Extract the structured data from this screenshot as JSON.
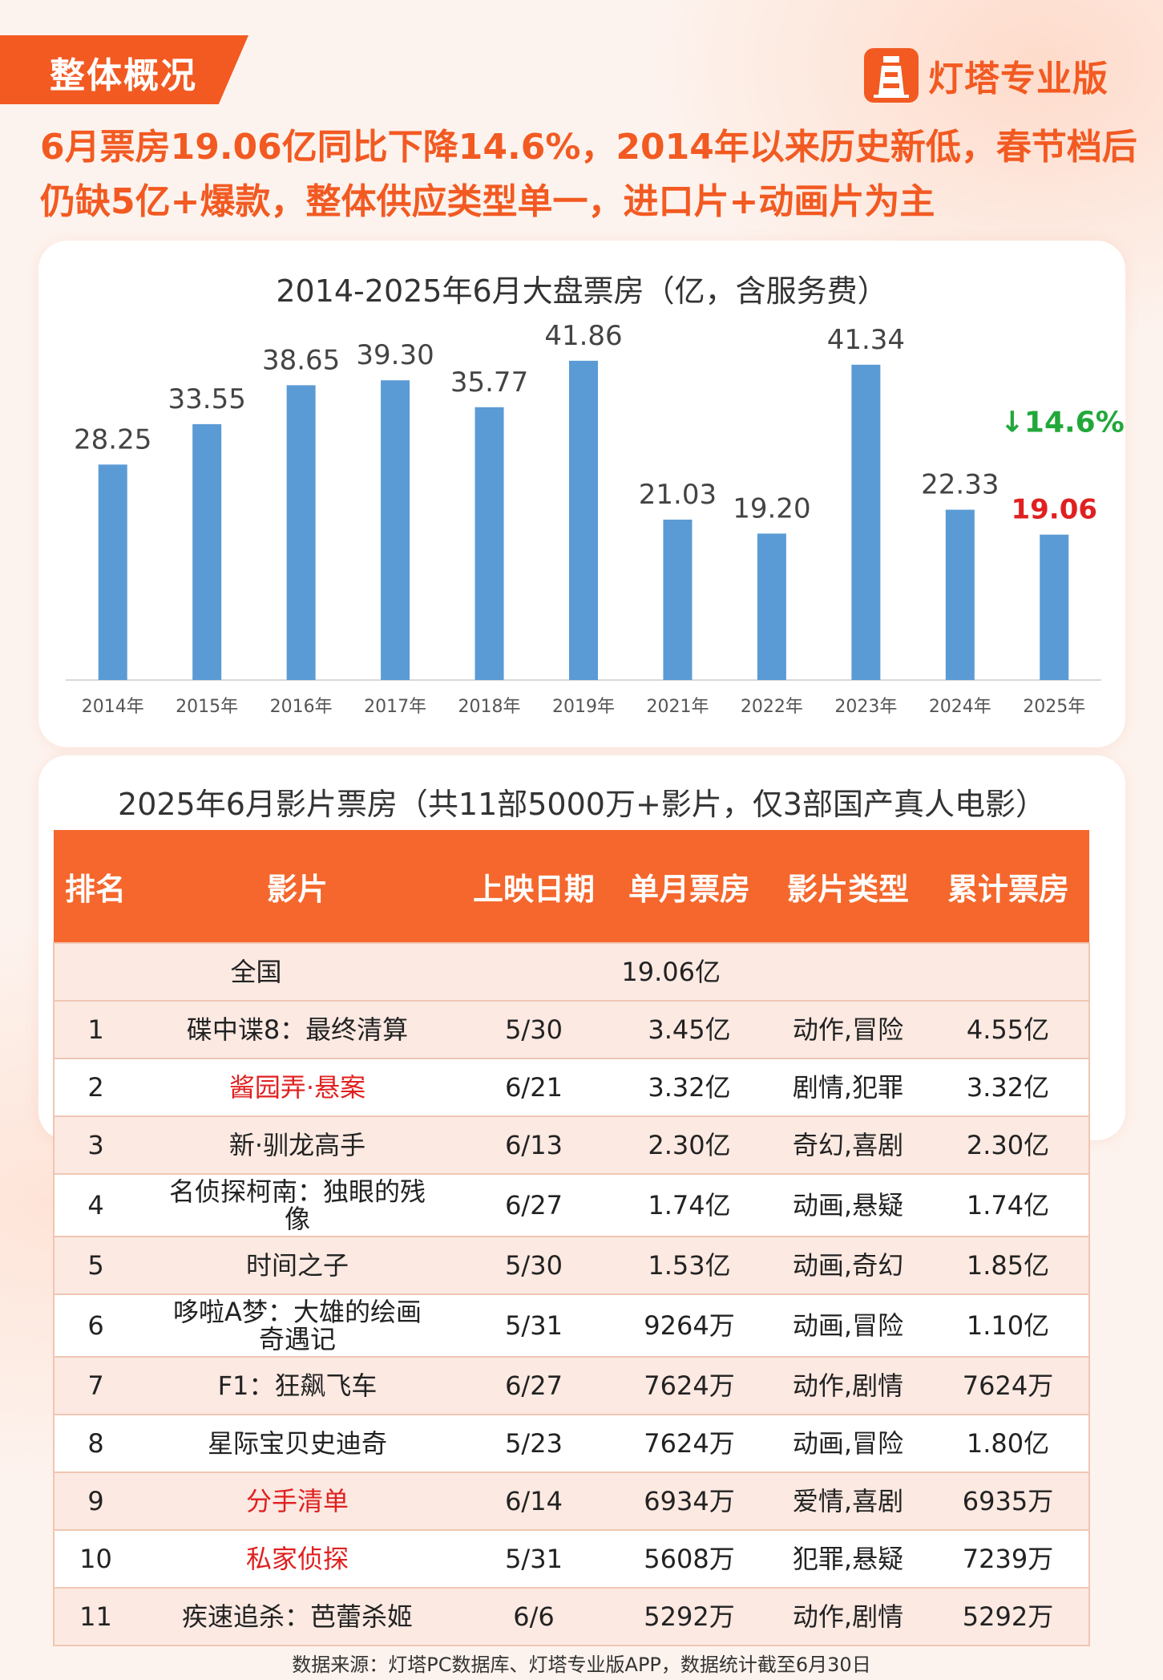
{
  "section_tab": "整体概况",
  "brand": {
    "name": "灯塔专业版",
    "logo_icon": "lighthouse-icon"
  },
  "headline": "6月票房19.06亿同比下降14.6%，2014年以来历史新低，春节档后仍缺5亿+爆款，整体供应类型单一，进口片+动画片为主",
  "chart_data": {
    "type": "bar",
    "title": "2014-2025年6月大盘票房（亿，含服务费）",
    "categories": [
      "2014年",
      "2015年",
      "2016年",
      "2017年",
      "2018年",
      "2019年",
      "2021年",
      "2022年",
      "2023年",
      "2024年",
      "2025年"
    ],
    "values": [
      28.25,
      33.55,
      38.65,
      39.3,
      35.77,
      41.86,
      21.03,
      19.2,
      41.34,
      22.33,
      19.06
    ],
    "data_labels": [
      "28.25",
      "33.55",
      "38.65",
      "39.30",
      "35.77",
      "41.86",
      "21.03",
      "19.20",
      "41.34",
      "22.33",
      "19.06"
    ],
    "ylim": [
      0,
      45
    ],
    "bar_color": "#5b9bd5",
    "highlight_label_color": "#e02020",
    "annotation": {
      "text": "↓14.6%",
      "color": "#22a83a"
    },
    "grid": false
  },
  "table": {
    "title": "2025年6月影片票房（共11部5000万+影片，仅3部国产真人电影）",
    "headers": [
      "排名",
      "影片",
      "上映日期",
      "单月票房",
      "影片类型",
      "累计票房"
    ],
    "total": {
      "label": "全国",
      "value": "19.06亿"
    },
    "rows": [
      {
        "rank": "1",
        "film": "碟中谍8：最终清算",
        "date": "5/30",
        "monthly": "3.45亿",
        "genre": "动作,冒险",
        "cumulative": "4.55亿",
        "domestic_live": false
      },
      {
        "rank": "2",
        "film": "酱园弄·悬案",
        "date": "6/21",
        "monthly": "3.32亿",
        "genre": "剧情,犯罪",
        "cumulative": "3.32亿",
        "domestic_live": true
      },
      {
        "rank": "3",
        "film": "新·驯龙高手",
        "date": "6/13",
        "monthly": "2.30亿",
        "genre": "奇幻,喜剧",
        "cumulative": "2.30亿",
        "domestic_live": false
      },
      {
        "rank": "4",
        "film": "名侦探柯南：独眼的残像",
        "date": "6/27",
        "monthly": "1.74亿",
        "genre": "动画,悬疑",
        "cumulative": "1.74亿",
        "domestic_live": false
      },
      {
        "rank": "5",
        "film": "时间之子",
        "date": "5/30",
        "monthly": "1.53亿",
        "genre": "动画,奇幻",
        "cumulative": "1.85亿",
        "domestic_live": false
      },
      {
        "rank": "6",
        "film": "哆啦A梦：大雄的绘画奇遇记",
        "date": "5/31",
        "monthly": "9264万",
        "genre": "动画,冒险",
        "cumulative": "1.10亿",
        "domestic_live": false
      },
      {
        "rank": "7",
        "film": "F1：狂飙飞车",
        "date": "6/27",
        "monthly": "7624万",
        "genre": "动作,剧情",
        "cumulative": "7624万",
        "domestic_live": false
      },
      {
        "rank": "8",
        "film": "星际宝贝史迪奇",
        "date": "5/23",
        "monthly": "7624万",
        "genre": "动画,冒险",
        "cumulative": "1.80亿",
        "domestic_live": false
      },
      {
        "rank": "9",
        "film": "分手清单",
        "date": "6/14",
        "monthly": "6934万",
        "genre": "爱情,喜剧",
        "cumulative": "6935万",
        "domestic_live": true
      },
      {
        "rank": "10",
        "film": "私家侦探",
        "date": "5/31",
        "monthly": "5608万",
        "genre": "犯罪,悬疑",
        "cumulative": "7239万",
        "domestic_live": true
      },
      {
        "rank": "11",
        "film": "疾速追杀：芭蕾杀姬",
        "date": "6/6",
        "monthly": "5292万",
        "genre": "动作,剧情",
        "cumulative": "5292万",
        "domestic_live": false
      }
    ]
  },
  "footer": "数据来源：灯塔PC数据库、灯塔专业版APP，数据统计截至6月30日"
}
